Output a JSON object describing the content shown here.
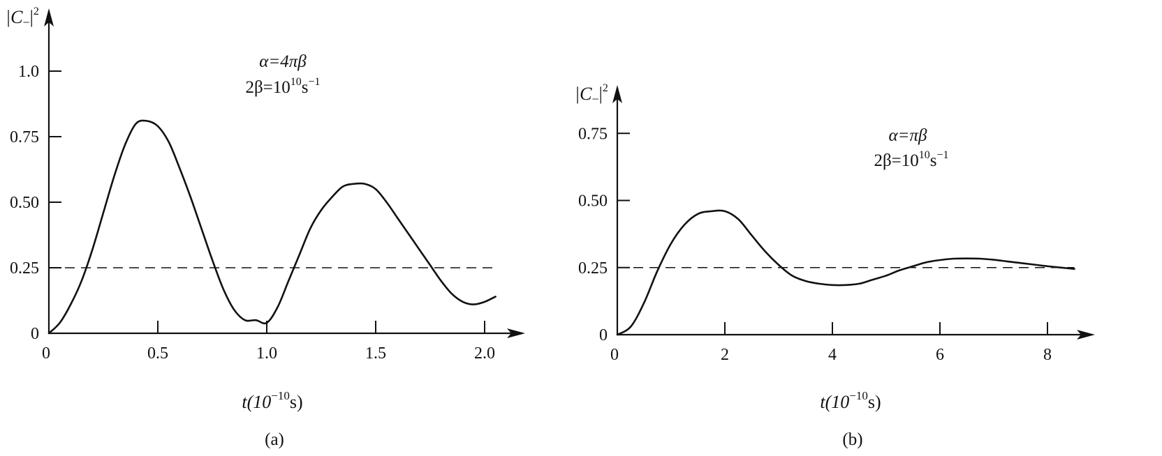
{
  "chart_data": [
    {
      "type": "line",
      "panel_label": "(a)",
      "annotation": {
        "line1": "α=4πβ",
        "line2_prefix": "2β=10",
        "line2_exp": "10",
        "line2_unit": "s",
        "line2_unit_exp": "−1"
      },
      "ylabel": {
        "prefix": "|C",
        "sub": "−",
        "suffix": "|",
        "sup": "2"
      },
      "xlabel": {
        "prefix": "t(10",
        "sup": "−10",
        "suffix": "s)"
      },
      "xlim": [
        0,
        2.1
      ],
      "ylim": [
        0,
        1.0
      ],
      "xticks": [
        0,
        0.5,
        1.0,
        1.5,
        2.0
      ],
      "xtick_labels": [
        "0",
        "0.5",
        "1.0",
        "1.5",
        "2.0"
      ],
      "yticks": [
        0,
        0.25,
        0.5,
        0.75,
        1.0
      ],
      "ytick_labels": [
        "0",
        "0.25",
        "0.50",
        "0.75",
        "1.0"
      ],
      "reference_line": {
        "y": 0.25,
        "x": [
          0,
          2.05
        ],
        "style": "dashed"
      },
      "series": [
        {
          "x": [
            0,
            0.05,
            0.1,
            0.15,
            0.2,
            0.25,
            0.3,
            0.35,
            0.4,
            0.45,
            0.5,
            0.55,
            0.6,
            0.65,
            0.7,
            0.75,
            0.8,
            0.85,
            0.9,
            0.95,
            1.0,
            1.05,
            1.1,
            1.15,
            1.2,
            1.25,
            1.3,
            1.35,
            1.4,
            1.45,
            1.5,
            1.55,
            1.6,
            1.65,
            1.7,
            1.75,
            1.8,
            1.85,
            1.9,
            1.95,
            2.0,
            2.05
          ],
          "y": [
            0,
            0.04,
            0.11,
            0.2,
            0.32,
            0.46,
            0.6,
            0.72,
            0.8,
            0.81,
            0.79,
            0.73,
            0.63,
            0.52,
            0.4,
            0.28,
            0.17,
            0.09,
            0.05,
            0.05,
            0.04,
            0.1,
            0.2,
            0.3,
            0.4,
            0.47,
            0.52,
            0.56,
            0.57,
            0.57,
            0.55,
            0.5,
            0.44,
            0.38,
            0.32,
            0.26,
            0.2,
            0.15,
            0.12,
            0.11,
            0.12,
            0.14
          ]
        }
      ]
    },
    {
      "type": "line",
      "panel_label": "(b)",
      "annotation": {
        "line1": "α=πβ",
        "line2_prefix": "2β=10",
        "line2_exp": "10",
        "line2_unit": "s",
        "line2_unit_exp": "−1"
      },
      "ylabel": {
        "prefix": "|C",
        "sub": "−",
        "suffix": "|",
        "sup": "2"
      },
      "xlabel": {
        "prefix": "t(10",
        "sup": "−10",
        "suffix": "s)"
      },
      "xlim": [
        0,
        8.5
      ],
      "ylim": [
        0,
        0.75
      ],
      "xticks": [
        0,
        2,
        4,
        6,
        8
      ],
      "xtick_labels": [
        "0",
        "2",
        "4",
        "6",
        "8"
      ],
      "yticks": [
        0,
        0.25,
        0.5,
        0.75
      ],
      "ytick_labels": [
        "0",
        "0.25",
        "0.50",
        "0.75"
      ],
      "reference_line": {
        "y": 0.25,
        "x": [
          0,
          8.5
        ],
        "style": "dashed"
      },
      "series": [
        {
          "x": [
            0,
            0.25,
            0.5,
            0.75,
            1.0,
            1.25,
            1.5,
            1.75,
            2.0,
            2.25,
            2.5,
            2.75,
            3.0,
            3.25,
            3.5,
            3.75,
            4.0,
            4.25,
            4.5,
            4.75,
            5.0,
            5.25,
            5.5,
            5.75,
            6.0,
            6.25,
            6.5,
            6.75,
            7.0,
            7.25,
            7.5,
            7.75,
            8.0,
            8.25,
            8.5
          ],
          "y": [
            0,
            0.03,
            0.12,
            0.24,
            0.34,
            0.41,
            0.45,
            0.46,
            0.46,
            0.43,
            0.37,
            0.31,
            0.26,
            0.22,
            0.2,
            0.19,
            0.185,
            0.185,
            0.19,
            0.205,
            0.22,
            0.24,
            0.255,
            0.27,
            0.278,
            0.283,
            0.284,
            0.283,
            0.279,
            0.273,
            0.267,
            0.261,
            0.255,
            0.25,
            0.245
          ]
        }
      ]
    }
  ]
}
